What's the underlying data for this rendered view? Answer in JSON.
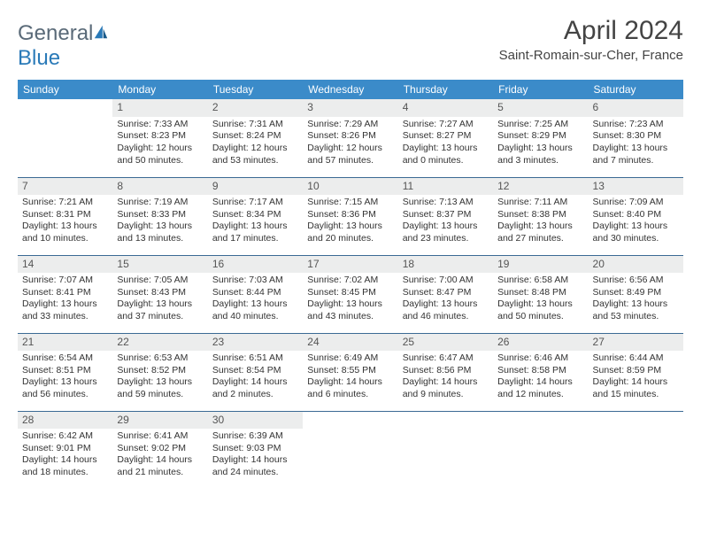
{
  "logo": {
    "text_general": "General",
    "text_blue": "Blue"
  },
  "title": "April 2024",
  "location": "Saint-Romain-sur-Cher, France",
  "colors": {
    "header_bg": "#3b8bc9",
    "header_text": "#ffffff",
    "day_num_bg": "#eceded",
    "row_divider": "#3b6a94",
    "body_text": "#333333",
    "logo_gray": "#5a6a78",
    "logo_blue": "#2a7ab8"
  },
  "typography": {
    "title_fontsize": 30,
    "location_fontsize": 15,
    "dayheader_fontsize": 12,
    "daynum_fontsize": 12,
    "cell_fontsize": 10.5
  },
  "day_headers": [
    "Sunday",
    "Monday",
    "Tuesday",
    "Wednesday",
    "Thursday",
    "Friday",
    "Saturday"
  ],
  "weeks": [
    [
      null,
      {
        "n": "1",
        "sunrise": "Sunrise: 7:33 AM",
        "sunset": "Sunset: 8:23 PM",
        "day1": "Daylight: 12 hours",
        "day2": "and 50 minutes."
      },
      {
        "n": "2",
        "sunrise": "Sunrise: 7:31 AM",
        "sunset": "Sunset: 8:24 PM",
        "day1": "Daylight: 12 hours",
        "day2": "and 53 minutes."
      },
      {
        "n": "3",
        "sunrise": "Sunrise: 7:29 AM",
        "sunset": "Sunset: 8:26 PM",
        "day1": "Daylight: 12 hours",
        "day2": "and 57 minutes."
      },
      {
        "n": "4",
        "sunrise": "Sunrise: 7:27 AM",
        "sunset": "Sunset: 8:27 PM",
        "day1": "Daylight: 13 hours",
        "day2": "and 0 minutes."
      },
      {
        "n": "5",
        "sunrise": "Sunrise: 7:25 AM",
        "sunset": "Sunset: 8:29 PM",
        "day1": "Daylight: 13 hours",
        "day2": "and 3 minutes."
      },
      {
        "n": "6",
        "sunrise": "Sunrise: 7:23 AM",
        "sunset": "Sunset: 8:30 PM",
        "day1": "Daylight: 13 hours",
        "day2": "and 7 minutes."
      }
    ],
    [
      {
        "n": "7",
        "sunrise": "Sunrise: 7:21 AM",
        "sunset": "Sunset: 8:31 PM",
        "day1": "Daylight: 13 hours",
        "day2": "and 10 minutes."
      },
      {
        "n": "8",
        "sunrise": "Sunrise: 7:19 AM",
        "sunset": "Sunset: 8:33 PM",
        "day1": "Daylight: 13 hours",
        "day2": "and 13 minutes."
      },
      {
        "n": "9",
        "sunrise": "Sunrise: 7:17 AM",
        "sunset": "Sunset: 8:34 PM",
        "day1": "Daylight: 13 hours",
        "day2": "and 17 minutes."
      },
      {
        "n": "10",
        "sunrise": "Sunrise: 7:15 AM",
        "sunset": "Sunset: 8:36 PM",
        "day1": "Daylight: 13 hours",
        "day2": "and 20 minutes."
      },
      {
        "n": "11",
        "sunrise": "Sunrise: 7:13 AM",
        "sunset": "Sunset: 8:37 PM",
        "day1": "Daylight: 13 hours",
        "day2": "and 23 minutes."
      },
      {
        "n": "12",
        "sunrise": "Sunrise: 7:11 AM",
        "sunset": "Sunset: 8:38 PM",
        "day1": "Daylight: 13 hours",
        "day2": "and 27 minutes."
      },
      {
        "n": "13",
        "sunrise": "Sunrise: 7:09 AM",
        "sunset": "Sunset: 8:40 PM",
        "day1": "Daylight: 13 hours",
        "day2": "and 30 minutes."
      }
    ],
    [
      {
        "n": "14",
        "sunrise": "Sunrise: 7:07 AM",
        "sunset": "Sunset: 8:41 PM",
        "day1": "Daylight: 13 hours",
        "day2": "and 33 minutes."
      },
      {
        "n": "15",
        "sunrise": "Sunrise: 7:05 AM",
        "sunset": "Sunset: 8:43 PM",
        "day1": "Daylight: 13 hours",
        "day2": "and 37 minutes."
      },
      {
        "n": "16",
        "sunrise": "Sunrise: 7:03 AM",
        "sunset": "Sunset: 8:44 PM",
        "day1": "Daylight: 13 hours",
        "day2": "and 40 minutes."
      },
      {
        "n": "17",
        "sunrise": "Sunrise: 7:02 AM",
        "sunset": "Sunset: 8:45 PM",
        "day1": "Daylight: 13 hours",
        "day2": "and 43 minutes."
      },
      {
        "n": "18",
        "sunrise": "Sunrise: 7:00 AM",
        "sunset": "Sunset: 8:47 PM",
        "day1": "Daylight: 13 hours",
        "day2": "and 46 minutes."
      },
      {
        "n": "19",
        "sunrise": "Sunrise: 6:58 AM",
        "sunset": "Sunset: 8:48 PM",
        "day1": "Daylight: 13 hours",
        "day2": "and 50 minutes."
      },
      {
        "n": "20",
        "sunrise": "Sunrise: 6:56 AM",
        "sunset": "Sunset: 8:49 PM",
        "day1": "Daylight: 13 hours",
        "day2": "and 53 minutes."
      }
    ],
    [
      {
        "n": "21",
        "sunrise": "Sunrise: 6:54 AM",
        "sunset": "Sunset: 8:51 PM",
        "day1": "Daylight: 13 hours",
        "day2": "and 56 minutes."
      },
      {
        "n": "22",
        "sunrise": "Sunrise: 6:53 AM",
        "sunset": "Sunset: 8:52 PM",
        "day1": "Daylight: 13 hours",
        "day2": "and 59 minutes."
      },
      {
        "n": "23",
        "sunrise": "Sunrise: 6:51 AM",
        "sunset": "Sunset: 8:54 PM",
        "day1": "Daylight: 14 hours",
        "day2": "and 2 minutes."
      },
      {
        "n": "24",
        "sunrise": "Sunrise: 6:49 AM",
        "sunset": "Sunset: 8:55 PM",
        "day1": "Daylight: 14 hours",
        "day2": "and 6 minutes."
      },
      {
        "n": "25",
        "sunrise": "Sunrise: 6:47 AM",
        "sunset": "Sunset: 8:56 PM",
        "day1": "Daylight: 14 hours",
        "day2": "and 9 minutes."
      },
      {
        "n": "26",
        "sunrise": "Sunrise: 6:46 AM",
        "sunset": "Sunset: 8:58 PM",
        "day1": "Daylight: 14 hours",
        "day2": "and 12 minutes."
      },
      {
        "n": "27",
        "sunrise": "Sunrise: 6:44 AM",
        "sunset": "Sunset: 8:59 PM",
        "day1": "Daylight: 14 hours",
        "day2": "and 15 minutes."
      }
    ],
    [
      {
        "n": "28",
        "sunrise": "Sunrise: 6:42 AM",
        "sunset": "Sunset: 9:01 PM",
        "day1": "Daylight: 14 hours",
        "day2": "and 18 minutes."
      },
      {
        "n": "29",
        "sunrise": "Sunrise: 6:41 AM",
        "sunset": "Sunset: 9:02 PM",
        "day1": "Daylight: 14 hours",
        "day2": "and 21 minutes."
      },
      {
        "n": "30",
        "sunrise": "Sunrise: 6:39 AM",
        "sunset": "Sunset: 9:03 PM",
        "day1": "Daylight: 14 hours",
        "day2": "and 24 minutes."
      },
      null,
      null,
      null,
      null
    ]
  ]
}
